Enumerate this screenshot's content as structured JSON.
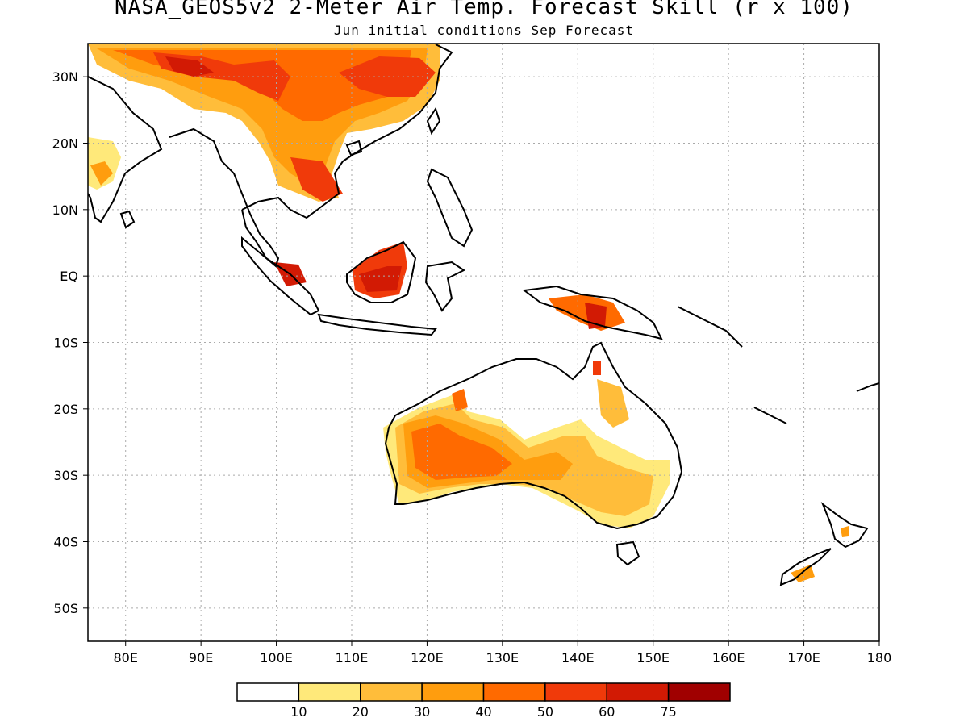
{
  "title": "NASA_GEOS5v2 2-Meter Air Temp. Forecast Skill (r x 100)",
  "subtitle": "Jun initial conditions  Sep Forecast",
  "map": {
    "lon_range": [
      75,
      180
    ],
    "lat_range": [
      -55,
      35
    ],
    "grid": "dotted",
    "lat_ticks": [
      {
        "value": 30,
        "label": "30N"
      },
      {
        "value": 20,
        "label": "20N"
      },
      {
        "value": 10,
        "label": "10N"
      },
      {
        "value": 0,
        "label": "EQ"
      },
      {
        "value": -10,
        "label": "10S"
      },
      {
        "value": -20,
        "label": "20S"
      },
      {
        "value": -30,
        "label": "30S"
      },
      {
        "value": -40,
        "label": "40S"
      },
      {
        "value": -50,
        "label": "50S"
      }
    ],
    "lon_ticks": [
      {
        "value": 80,
        "label": "80E"
      },
      {
        "value": 90,
        "label": "90E"
      },
      {
        "value": 100,
        "label": "100E"
      },
      {
        "value": 110,
        "label": "110E"
      },
      {
        "value": 120,
        "label": "120E"
      },
      {
        "value": 130,
        "label": "130E"
      },
      {
        "value": 140,
        "label": "140E"
      },
      {
        "value": 150,
        "label": "150E"
      },
      {
        "value": 160,
        "label": "160E"
      },
      {
        "value": 170,
        "label": "170E"
      },
      {
        "value": 180,
        "label": "180"
      }
    ]
  },
  "colorbar": {
    "colors": [
      "#ffffff",
      "#ffe97a",
      "#ffbd3a",
      "#ff9d0e",
      "#ff6a00",
      "#f03a0a",
      "#d21a04",
      "#a00000"
    ],
    "labels": [
      "10",
      "20",
      "30",
      "40",
      "50",
      "60",
      "75"
    ]
  }
}
